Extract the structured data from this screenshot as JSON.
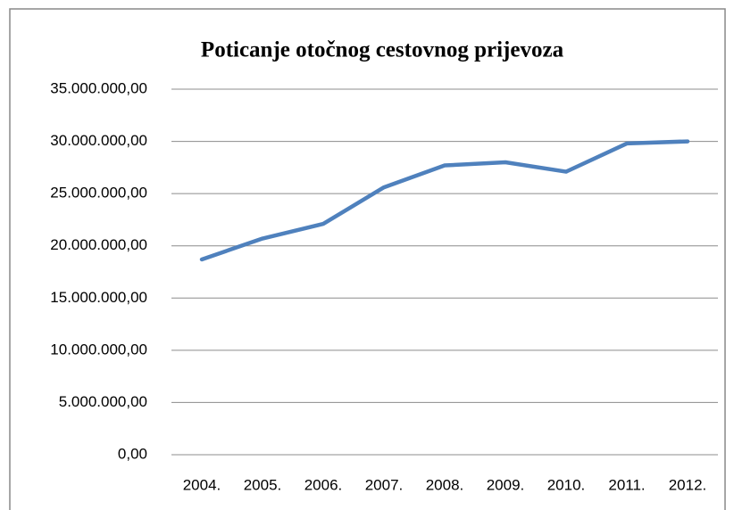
{
  "chart_data": {
    "type": "line",
    "title": "Poticanje otočnog cestovnog prijevoza",
    "categories": [
      "2004.",
      "2005.",
      "2006.",
      "2007.",
      "2008.",
      "2009.",
      "2010.",
      "2011.",
      "2012."
    ],
    "series": [
      {
        "name": "Poticanje otočnog cestovnog prijevoza",
        "color": "#4f81bd",
        "values": [
          18700000,
          20700000,
          22100000,
          25600000,
          27700000,
          28000000,
          27100000,
          29800000,
          30000000
        ]
      }
    ],
    "ylim": [
      0,
      35000000
    ],
    "yticks": [
      {
        "value": 0,
        "label": "0,00"
      },
      {
        "value": 5000000,
        "label": "5.000.000,00"
      },
      {
        "value": 10000000,
        "label": "10.000.000,00"
      },
      {
        "value": 15000000,
        "label": "15.000.000,00"
      },
      {
        "value": 20000000,
        "label": "20.000.000,00"
      },
      {
        "value": 25000000,
        "label": "25.000.000,00"
      },
      {
        "value": 30000000,
        "label": "30.000.000,00"
      },
      {
        "value": 35000000,
        "label": "35.000.000,00"
      }
    ],
    "grid": true
  }
}
